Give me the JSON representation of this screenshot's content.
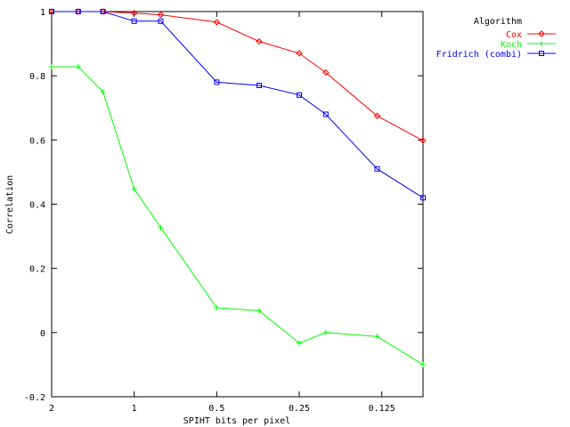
{
  "chart_data": {
    "type": "line",
    "title": "",
    "xlabel": "SPIHT bits per pixel",
    "ylabel": "Correlation",
    "x_scale": "log2-reversed",
    "xlim": [
      2,
      0.0884
    ],
    "ylim": [
      -0.2,
      1
    ],
    "x_ticks": [
      2,
      1,
      0.5,
      0.25,
      0.125
    ],
    "x_tick_labels": [
      "2",
      "1",
      "0.5",
      "0.25",
      "0.125"
    ],
    "y_ticks": [
      -0.2,
      0,
      0.2,
      0.4,
      0.6,
      0.8,
      1
    ],
    "y_tick_labels": [
      "-0.2",
      "0",
      "0.2",
      "0.4",
      "0.6",
      "0.8",
      "1"
    ],
    "grid": false,
    "legend": {
      "title": "Algorithm",
      "placement": "top-right, outside plot"
    },
    "x": [
      2,
      1.6,
      1.3,
      1,
      0.8,
      0.5,
      0.35,
      0.25,
      0.2,
      0.13,
      0.0884
    ],
    "series": [
      {
        "name": "Cox",
        "color": "#ff0000",
        "marker": "diamond",
        "values": [
          1,
          1,
          1,
          0.995,
          0.99,
          0.967,
          0.907,
          0.87,
          0.81,
          0.675,
          0.598
        ]
      },
      {
        "name": "Koch",
        "color": "#00ff00",
        "marker": "plus",
        "values": [
          0.828,
          0.828,
          0.75,
          0.447,
          0.327,
          0.077,
          0.068,
          -0.033,
          0.0,
          -0.012,
          -0.1
        ]
      },
      {
        "name": "Fridrich (combi)",
        "color": "#0000ff",
        "marker": "square",
        "values": [
          1,
          1,
          1,
          0.97,
          0.97,
          0.78,
          0.77,
          0.74,
          0.68,
          0.51,
          0.42
        ]
      }
    ]
  }
}
